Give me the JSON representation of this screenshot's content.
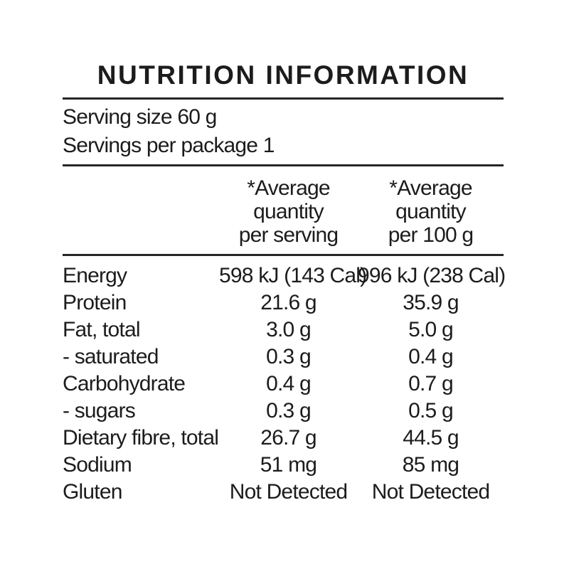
{
  "title": "NUTRITION INFORMATION",
  "serving_info": {
    "serving_size": "Serving size 60 g",
    "servings_per_package": "Servings per package 1"
  },
  "columns": [
    {
      "line1": "*Average",
      "line2": "quantity",
      "line3": "per serving"
    },
    {
      "line1": "*Average",
      "line2": "quantity",
      "line3": "per 100 g"
    }
  ],
  "rows": [
    {
      "label": "Energy",
      "per_serving": "598 kJ (143 Cal)",
      "per_100g": "996 kJ (238 Cal)"
    },
    {
      "label": "Protein",
      "per_serving": "21.6 g",
      "per_100g": "35.9 g"
    },
    {
      "label": "Fat, total",
      "per_serving": "3.0 g",
      "per_100g": "5.0 g"
    },
    {
      "label": "- saturated",
      "per_serving": "0.3 g",
      "per_100g": "0.4 g"
    },
    {
      "label": "Carbohydrate",
      "per_serving": "0.4 g",
      "per_100g": "0.7 g"
    },
    {
      "label": "- sugars",
      "per_serving": "0.3 g",
      "per_100g": "0.5 g"
    },
    {
      "label": "Dietary fibre, total",
      "per_serving": "26.7 g",
      "per_100g": "44.5 g"
    },
    {
      "label": "Sodium",
      "per_serving": "51 mg",
      "per_100g": "85 mg"
    },
    {
      "label": "Gluten",
      "per_serving": "Not Detected",
      "per_100g": "Not Detected"
    }
  ],
  "colors": {
    "text": "#1c1c1c",
    "rule": "#262626",
    "background": "#ffffff"
  }
}
